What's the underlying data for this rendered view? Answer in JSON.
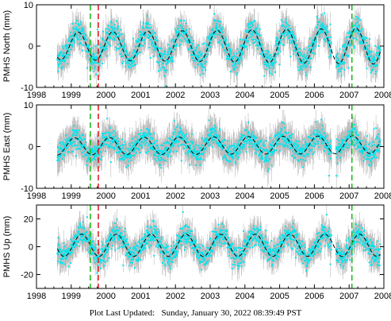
{
  "footer": {
    "label": "Plot Last Updated:",
    "timestamp": "Sunday, January 30, 2022 08:39:49 PST"
  },
  "colors": {
    "errorbar": "#b4b4b4",
    "points": "#00e5ee",
    "model": "#000000",
    "green_marker": "#22bb22",
    "red_marker": "#dd2222",
    "axes": "#000000"
  },
  "chart_data": [
    {
      "type": "scatter",
      "ylabel": "PMHS North (mm)",
      "xlim": [
        1998,
        2008
      ],
      "ylim": [
        -10,
        10
      ],
      "xticks": [
        1998,
        1999,
        2000,
        2001,
        2002,
        2003,
        2004,
        2005,
        2006,
        2007,
        2008
      ],
      "yticks": [
        -10,
        0,
        10
      ],
      "data_range": [
        1998.6,
        2007.9
      ],
      "noise_mm": 1.5,
      "errorbar_mm": 2.5,
      "series": [
        {
          "kind": "observations",
          "values_desc": "daily position with error bars"
        },
        {
          "kind": "model",
          "style": "dashed",
          "model": {
            "amplitude": 3.8,
            "phase_peak_year_fraction": 0.2,
            "offset": 0,
            "trend": 0,
            "amp_growth": 0.3
          }
        }
      ],
      "vlines": [
        {
          "x": 1999.55,
          "color": "green",
          "style": "dashed"
        },
        {
          "x": 1999.78,
          "color": "red",
          "style": "dashed"
        },
        {
          "x": 2007.08,
          "color": "green",
          "style": "dashed"
        }
      ]
    },
    {
      "type": "scatter",
      "ylabel": "PMHS East (mm)",
      "xlim": [
        1998,
        2008
      ],
      "ylim": [
        -10,
        10
      ],
      "xticks": [
        1998,
        1999,
        2000,
        2001,
        2002,
        2003,
        2004,
        2005,
        2006,
        2007,
        2008
      ],
      "yticks": [
        -10,
        0,
        10
      ],
      "data_range": [
        1998.6,
        2007.9
      ],
      "noise_mm": 1.3,
      "errorbar_mm": 2.8,
      "series": [
        {
          "kind": "observations",
          "values_desc": "daily position with error bars"
        },
        {
          "kind": "model",
          "style": "dashed",
          "model": {
            "amplitude": 2.1,
            "phase_peak_year_fraction": 0.1,
            "offset": 0,
            "trend": 0.05,
            "amp_growth": 0.05
          }
        }
      ],
      "vlines": [
        {
          "x": 1999.55,
          "color": "green",
          "style": "dashed"
        },
        {
          "x": 1999.78,
          "color": "red",
          "style": "dashed"
        },
        {
          "x": 2007.08,
          "color": "green",
          "style": "dashed"
        }
      ]
    },
    {
      "type": "scatter",
      "ylabel": "PMHS Up (mm)",
      "xlim": [
        1998,
        2008
      ],
      "ylim": [
        -30,
        30
      ],
      "xticks": [
        1998,
        1999,
        2000,
        2001,
        2002,
        2003,
        2004,
        2005,
        2006,
        2007,
        2008
      ],
      "yticks": [
        -20,
        0,
        20
      ],
      "data_range": [
        1998.6,
        2007.9
      ],
      "noise_mm": 4,
      "errorbar_mm": 7,
      "series": [
        {
          "kind": "observations",
          "values_desc": "daily position with error bars"
        },
        {
          "kind": "model",
          "style": "dashed",
          "model": {
            "amplitude": 8,
            "phase_peak_year_fraction": 0.3,
            "offset": 1,
            "trend": 0,
            "amp_growth": 0
          }
        }
      ],
      "vlines": [
        {
          "x": 1999.55,
          "color": "green",
          "style": "dashed"
        },
        {
          "x": 1999.78,
          "color": "red",
          "style": "dashed"
        },
        {
          "x": 2007.08,
          "color": "green",
          "style": "dashed"
        }
      ]
    }
  ]
}
